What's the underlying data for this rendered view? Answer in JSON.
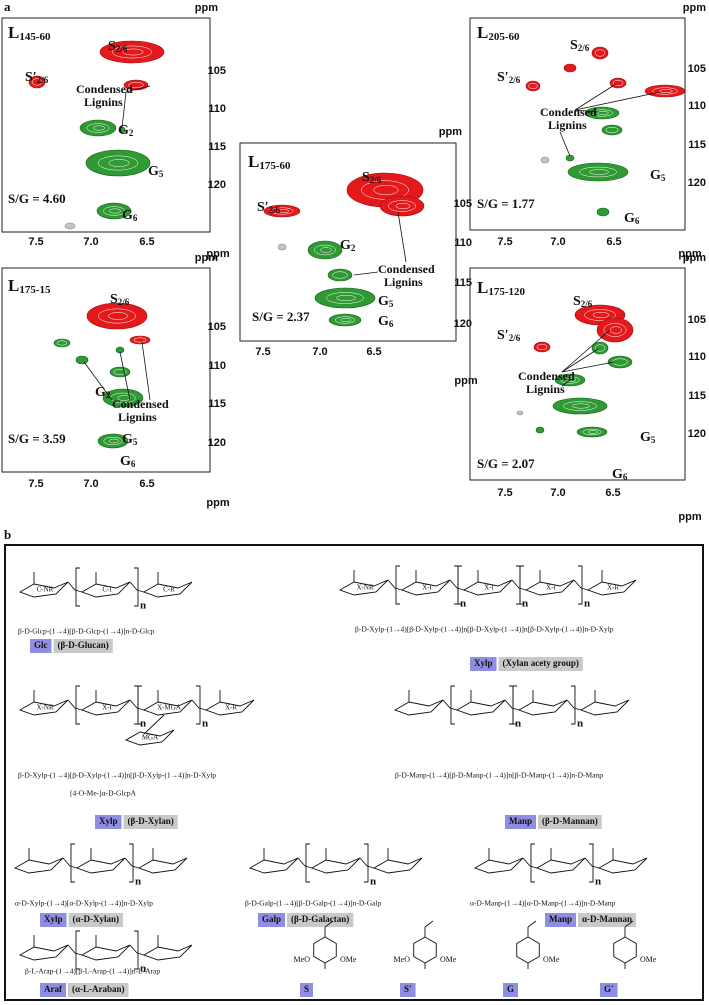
{
  "part_a": {
    "label": "a",
    "panels": [
      {
        "name": {
          "main": "L",
          "sub": "145-60"
        },
        "peaks": [
          {
            "main": "S",
            "sub": "2/6"
          },
          {
            "main": "S′",
            "sub": "2/6"
          },
          {
            "main": "G",
            "sub": "2"
          },
          {
            "main": "G",
            "sub": "5"
          },
          {
            "main": "G",
            "sub": "6"
          }
        ],
        "condensed": [
          "Condensed",
          "Lignins"
        ],
        "ratio": "S/G = 4.60",
        "x_ticks": [
          "7.5",
          "7.0",
          "6.5"
        ],
        "y_ticks": [
          "105",
          "110",
          "115",
          "120"
        ],
        "x_unit": "ppm",
        "y_unit": "ppm"
      },
      {
        "name": {
          "main": "L",
          "sub": "205-60"
        },
        "peaks": [
          {
            "main": "S",
            "sub": "2/6"
          },
          {
            "main": "S′",
            "sub": "2/6"
          },
          {
            "main": "G",
            "sub": "5"
          },
          {
            "main": "G",
            "sub": "6"
          }
        ],
        "condensed": [
          "Condensed",
          "Lignins"
        ],
        "ratio": "S/G = 1.77",
        "x_ticks": [
          "7.5",
          "7.0",
          "6.5"
        ],
        "y_ticks": [
          "105",
          "110",
          "115",
          "120"
        ],
        "x_unit": "ppm",
        "y_unit": "ppm"
      },
      {
        "name": {
          "main": "L",
          "sub": "175-60"
        },
        "peaks": [
          {
            "main": "S",
            "sub": "2/6"
          },
          {
            "main": "S′",
            "sub": "2/6"
          },
          {
            "main": "G",
            "sub": "2"
          },
          {
            "main": "G",
            "sub": "5"
          },
          {
            "main": "G",
            "sub": "6"
          }
        ],
        "condensed": [
          "Condensed",
          "Lignins"
        ],
        "ratio": "S/G = 2.37",
        "x_ticks": [
          "7.5",
          "7.0",
          "6.5"
        ],
        "y_ticks": [
          "105",
          "110",
          "115",
          "120"
        ],
        "x_unit": "ppm",
        "y_unit": "ppm"
      },
      {
        "name": {
          "main": "L",
          "sub": "175-15"
        },
        "peaks": [
          {
            "main": "S",
            "sub": "2/6"
          },
          {
            "main": "G",
            "sub": "2"
          },
          {
            "main": "G",
            "sub": "5"
          },
          {
            "main": "G",
            "sub": "6"
          }
        ],
        "condensed": [
          "Condensed",
          "Lignins"
        ],
        "ratio": "S/G = 3.59",
        "x_ticks": [
          "7.5",
          "7.0",
          "6.5"
        ],
        "y_ticks": [
          "105",
          "110",
          "115",
          "120"
        ],
        "x_unit": "ppm",
        "y_unit": "ppm"
      },
      {
        "name": {
          "main": "L",
          "sub": "175-120"
        },
        "peaks": [
          {
            "main": "S",
            "sub": "2/6"
          },
          {
            "main": "S′",
            "sub": "2/6"
          },
          {
            "main": "G",
            "sub": "5"
          },
          {
            "main": "G",
            "sub": "6"
          }
        ],
        "condensed": [
          "Condensed",
          "Lignins"
        ],
        "ratio": "S/G = 2.07",
        "x_ticks": [
          "7.5",
          "7.0",
          "6.5"
        ],
        "y_ticks": [
          "105",
          "110",
          "115",
          "120"
        ],
        "x_unit": "ppm",
        "y_unit": "ppm"
      }
    ]
  },
  "part_b": {
    "label": "b",
    "structures": [
      {
        "ring_labels": [
          "C-NR",
          "C-I",
          "C-R"
        ],
        "repeat": "n",
        "formula": "β-D-Glcp-(1→4)[β-D-Glcp-(1→4)]n-D-Glcp",
        "code": "Glc",
        "name": "(β-D-Glucan)"
      },
      {
        "ring_labels": [
          "X-NR",
          "X-I",
          "X-I",
          "X-I",
          "X-R"
        ],
        "repeat": "n",
        "formula": "β-D-Xylp-(1→4)[β-D-Xylp-(1→4)]n[β-D-Xylp-(1→4)]n[β-D-Xylp-(1→4)]n-D-Xylp",
        "code": "Xylp",
        "name": "(Xylan acety group)"
      },
      {
        "ring_labels": [
          "X-NR",
          "X-I",
          "X-MGA",
          "X-R"
        ],
        "side_label": "MGA",
        "repeat": "n",
        "formula": "β-D-Xylp-(1→4)[β-D-Xylp-(1→4)]n[β-D-Xylp-(1→4)]n-D-Xylp",
        "extra": "[4-O-Me-]α-D-GlcpA",
        "code": "Xylp",
        "name": "(β-D-Xylan)"
      },
      {
        "repeat": "n",
        "formula": "β-D-Manp-(1→4)[β-D-Manp-(1→4)]n[β-D-Manp-(1→4)]n-D-Manp",
        "code": "Manp",
        "name": "(β-D-Mannan)"
      },
      {
        "repeat": "n",
        "formula": "α-D-Xylp-(1→4)[α-D-Xylp-(1→4)]n-D-Xylp",
        "code": "Xylp",
        "name": "(α-D-Xylan)"
      },
      {
        "repeat": "n",
        "formula": "β-D-Galp-(1→4)[β-D-Galp-(1→4)]n-D-Galp",
        "code": "Galp",
        "name": "(β-D-Galactan)"
      },
      {
        "repeat": "n",
        "formula": "α-D-Manp-(1→4)[α-D-Manp-(1→4)]n-D-Manp",
        "code": "Manp",
        "name": "α-D-Mannan"
      },
      {
        "repeat": "n",
        "formula": "β-L-Arap-(1→4)[β-L-Arap-(1→4)]n-L-Arap",
        "code": "Araf",
        "name": "(α-L-Araban)"
      },
      {
        "substituents": [
          "MeO",
          "OMe"
        ],
        "code": "S"
      },
      {
        "substituents": [
          "MeO",
          "OMe"
        ],
        "code": "S′"
      },
      {
        "substituents": [
          "OMe"
        ],
        "code": "G"
      },
      {
        "substituents": [
          "OMe"
        ],
        "code": "G′"
      }
    ]
  }
}
